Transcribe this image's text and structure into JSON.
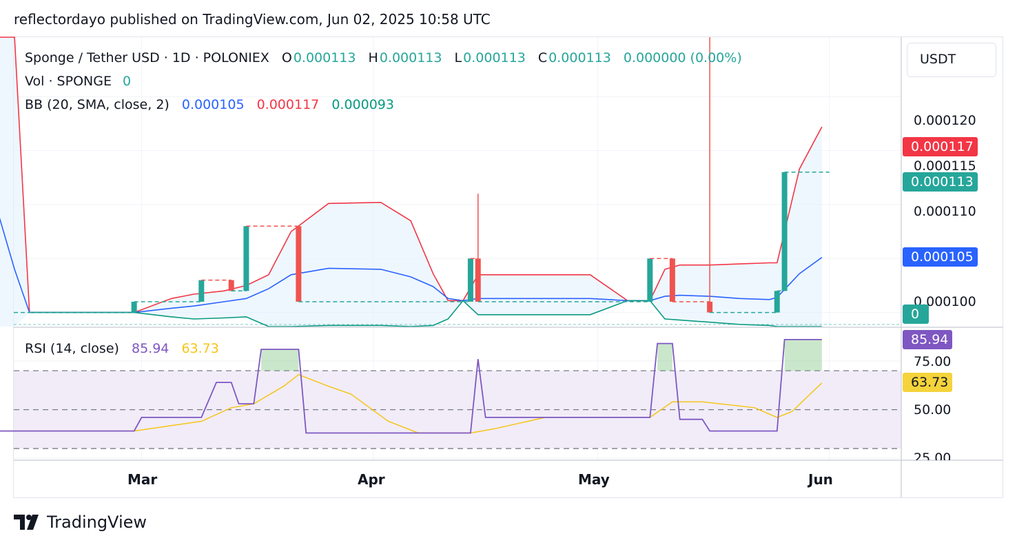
{
  "published_line": "reflectordayo published on TradingView.com, Jun 02, 2025 10:58 UTC",
  "legend": {
    "symbol": "Sponge / Tether USD · 1D · POLONIEX",
    "o_label": "O",
    "o_value": "0.000113",
    "h_label": "H",
    "h_value": "0.000113",
    "l_label": "L",
    "l_value": "0.000113",
    "c_label": "C",
    "c_value": "0.000113",
    "change": "0.000000 (0.00%)",
    "vol_label": "Vol · SPONGE",
    "vol_value": "0",
    "bb_label": "BB (20, SMA, close, 2)",
    "bb_basis": "0.000105",
    "bb_upper": "0.000117",
    "bb_lower": "0.000093",
    "rsi_label": "RSI (14, close)",
    "rsi_value": "85.94",
    "rsi_ma": "63.73"
  },
  "currency_button": "USDT",
  "price_axis": [
    "0.000120",
    "0.000115",
    "0.000110",
    "0.000100"
  ],
  "price_tags": {
    "upper": "0.000117",
    "close": "0.000113",
    "basis": "0.000105",
    "volume": "0"
  },
  "rsi_axis": [
    "75.00",
    "50.00",
    "25.00"
  ],
  "rsi_tags": {
    "rsi": "85.94",
    "ma": "63.73"
  },
  "time_axis": [
    "Mar",
    "Apr",
    "May",
    "Jun"
  ],
  "brand": "TradingView",
  "colors": {
    "up": "#26a69a",
    "down": "#ef5350",
    "basis": "#2962ff",
    "upper": "#f23645",
    "lower": "#089981",
    "rsi": "#7e57c2",
    "rsi_ma": "#f5c518",
    "band_fill": "#e3f2fd",
    "rsi_band": "#ede7f6"
  },
  "chart_data": {
    "type": "line",
    "price_ylim": [
      9.87e-05,
      0.0001255
    ],
    "rsi_ylim": [
      24,
      92
    ],
    "candles": [
      {
        "date": "2025-02-28",
        "open": 0.0001,
        "high": 0.000101,
        "low": 0.0001,
        "close": 0.000101
      },
      {
        "date": "2025-03-09",
        "open": 0.000101,
        "high": 0.000103,
        "low": 0.000101,
        "close": 0.000103
      },
      {
        "date": "2025-03-13",
        "open": 0.000103,
        "high": 0.000103,
        "low": 0.000102,
        "close": 0.000102
      },
      {
        "date": "2025-03-15",
        "open": 0.000102,
        "high": 0.000108,
        "low": 0.000102,
        "close": 0.000108
      },
      {
        "date": "2025-03-22",
        "open": 0.000108,
        "high": 0.000108,
        "low": 0.000101,
        "close": 0.000101
      },
      {
        "date": "2025-04-14",
        "open": 0.000101,
        "high": 0.000105,
        "low": 0.000101,
        "close": 0.000105
      },
      {
        "date": "2025-04-15",
        "open": 0.000105,
        "high": 0.000111,
        "low": 0.000101,
        "close": 0.000101
      },
      {
        "date": "2025-05-08",
        "open": 0.000101,
        "high": 0.000105,
        "low": 0.000101,
        "close": 0.000105
      },
      {
        "date": "2025-05-11",
        "open": 0.000105,
        "high": 0.000105,
        "low": 0.000101,
        "close": 0.000101
      },
      {
        "date": "2025-05-16",
        "open": 0.000101,
        "high": 0.000126,
        "low": 0.0001,
        "close": 0.0001
      },
      {
        "date": "2025-05-25",
        "open": 0.0001,
        "high": 0.000102,
        "low": 0.0001,
        "close": 0.000102
      },
      {
        "date": "2025-05-26",
        "open": 0.000102,
        "high": 0.000113,
        "low": 0.000102,
        "close": 0.000113
      }
    ],
    "bollinger": {
      "dates": [
        "2025-02-08",
        "2025-02-12",
        "2025-02-14",
        "2025-02-28",
        "2025-03-05",
        "2025-03-08",
        "2025-03-12",
        "2025-03-15",
        "2025-03-18",
        "2025-03-21",
        "2025-03-26",
        "2025-04-02",
        "2025-04-06",
        "2025-04-09",
        "2025-04-11",
        "2025-04-13",
        "2025-04-15",
        "2025-04-30",
        "2025-05-05",
        "2025-05-08",
        "2025-05-10",
        "2025-05-12",
        "2025-05-16",
        "2025-05-20",
        "2025-05-24",
        "2025-05-25",
        "2025-05-28",
        "2025-05-31"
      ],
      "basis": [
        0.0001135,
        0.000104,
        0.0001,
        0.0001,
        0.0001004,
        0.0001006,
        0.000101,
        0.0001013,
        0.0001022,
        0.0001035,
        0.0001041,
        0.000104,
        0.0001033,
        0.0001024,
        0.0001013,
        0.0001011,
        0.0001013,
        0.0001013,
        0.0001011,
        0.0001011,
        0.0001015,
        0.0001016,
        0.0001015,
        0.0001013,
        0.0001012,
        0.0001014,
        0.0001036,
        0.0001051
      ],
      "upper": [
        0.00013,
        0.00013,
        0.0001,
        0.0001,
        0.0001013,
        0.0001017,
        0.000102,
        0.0001025,
        0.0001035,
        0.0001075,
        0.0001101,
        0.0001102,
        0.0001085,
        0.0001036,
        0.0001011,
        0.0001011,
        0.0001035,
        0.0001035,
        0.0001011,
        0.0001011,
        0.000104,
        0.0001044,
        0.0001044,
        0.0001045,
        0.0001046,
        0.0001046,
        0.0001133,
        0.0001172
      ],
      "lower": [
        null,
        null,
        0.0001,
        0.0001,
        9.96e-05,
        9.94e-05,
        9.95e-05,
        9.96e-05,
        9.87e-05,
        9.85e-05,
        9.88e-05,
        9.88e-05,
        9.82e-05,
        9.88e-05,
        9.94e-05,
        0.0001011,
        9.98e-05,
        9.98e-05,
        0.0001011,
        0.0001011,
        9.94e-05,
        9.93e-05,
        9.91e-05,
        9.89e-05,
        9.88e-05,
        9.82e-05,
        9.79e-05,
        9.3e-05
      ]
    },
    "rsi": {
      "dates": [
        "2025-02-08",
        "2025-02-28",
        "2025-03-01",
        "2025-03-09",
        "2025-03-11",
        "2025-03-13",
        "2025-03-14",
        "2025-03-16",
        "2025-03-17",
        "2025-03-22",
        "2025-03-23",
        "2025-04-02",
        "2025-04-13",
        "2025-04-14",
        "2025-04-15",
        "2025-04-16",
        "2025-05-08",
        "2025-05-09",
        "2025-05-11",
        "2025-05-12",
        "2025-05-15",
        "2025-05-16",
        "2025-05-24",
        "2025-05-25",
        "2025-05-26",
        "2025-05-31"
      ],
      "values": [
        39,
        39,
        46,
        46,
        64,
        64,
        53,
        53,
        81,
        81,
        38,
        38,
        38,
        38,
        76,
        46,
        46,
        84,
        84,
        45,
        45,
        39,
        39,
        39,
        86,
        86
      ]
    },
    "rsi_ma": {
      "dates": [
        "2025-02-08",
        "2025-02-28",
        "2025-03-09",
        "2025-03-13",
        "2025-03-16",
        "2025-03-20",
        "2025-03-22",
        "2025-03-26",
        "2025-03-29",
        "2025-04-03",
        "2025-04-07",
        "2025-04-14",
        "2025-04-17",
        "2025-04-24",
        "2025-04-29",
        "2025-05-08",
        "2025-05-11",
        "2025-05-15",
        "2025-05-22",
        "2025-05-25",
        "2025-05-27",
        "2025-05-31"
      ],
      "values": [
        39,
        39,
        44,
        51,
        53,
        62,
        68,
        62,
        58,
        44,
        38,
        38,
        40,
        46,
        46,
        46,
        54,
        54,
        51,
        46,
        49,
        63.73
      ]
    },
    "levels": [
      {
        "name": "overbought",
        "value": 70
      },
      {
        "name": "middle",
        "value": 50
      },
      {
        "name": "oversold",
        "value": 30
      }
    ]
  }
}
